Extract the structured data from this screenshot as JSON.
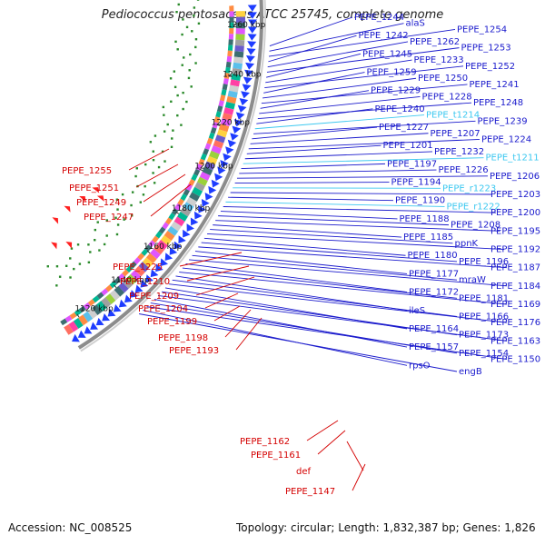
{
  "title": "Pediococcus pentosaceus ATCC 25745, complete genome",
  "footer": {
    "accession": "Accession: NC_008525",
    "summary": "Topology: circular; Length: 1,832,387 bp; Genes: 1,826"
  },
  "colors": {
    "forward_label": "#1a1acc",
    "reverse_label": "#d40000",
    "rna_label": "#3cc8f0",
    "backbone": "#8c8c8c",
    "gc_dots": "#2a8a2a",
    "cds_arrow": "#1e3cff"
  },
  "map": {
    "ticks": [
      "1260 kbp",
      "1240 kbp",
      "1220 kbp",
      "1200 kbp",
      "1180 kbp",
      "1160 kbp",
      "1140 kbp",
      "1120 kbp"
    ],
    "forward_labels": [
      {
        "text": "PEPE_1244"
      },
      {
        "text": "alaS"
      },
      {
        "text": "PEPE_1254"
      },
      {
        "text": "PEPE_1242"
      },
      {
        "text": "PEPE_1262"
      },
      {
        "text": "PEPE_1253"
      },
      {
        "text": "PEPE_1245"
      },
      {
        "text": "PEPE_1233"
      },
      {
        "text": "PEPE_1252"
      },
      {
        "text": "PEPE_1259"
      },
      {
        "text": "PEPE_1250"
      },
      {
        "text": "PEPE_1241"
      },
      {
        "text": "PEPE_1229"
      },
      {
        "text": "PEPE_1228"
      },
      {
        "text": "PEPE_1248"
      },
      {
        "text": "PEPE_1240"
      },
      {
        "text": "PEPE_t1214",
        "type": "rna"
      },
      {
        "text": "PEPE_1239"
      },
      {
        "text": "PEPE_1227"
      },
      {
        "text": "PEPE_1207"
      },
      {
        "text": "PEPE_1224"
      },
      {
        "text": "PEPE_1201"
      },
      {
        "text": "PEPE_1232"
      },
      {
        "text": "PEPE_t1211",
        "type": "rna"
      },
      {
        "text": "PEPE_1197"
      },
      {
        "text": "PEPE_1226"
      },
      {
        "text": "PEPE_1206"
      },
      {
        "text": "PEPE_1194"
      },
      {
        "text": "PEPE_r1223",
        "type": "rna"
      },
      {
        "text": "PEPE_1203"
      },
      {
        "text": "PEPE_1190"
      },
      {
        "text": "PEPE_r1222",
        "type": "rna"
      },
      {
        "text": "PEPE_1200"
      },
      {
        "text": "PEPE_1188"
      },
      {
        "text": "PEPE_1208"
      },
      {
        "text": "PEPE_1195"
      },
      {
        "text": "PEPE_1185"
      },
      {
        "text": "ppnK"
      },
      {
        "text": "PEPE_1192"
      },
      {
        "text": "PEPE_1180"
      },
      {
        "text": "PEPE_1196"
      },
      {
        "text": "PEPE_1187"
      },
      {
        "text": "PEPE_1177"
      },
      {
        "text": "mraW"
      },
      {
        "text": "PEPE_1184"
      },
      {
        "text": "PEPE_1172"
      },
      {
        "text": "PEPE_1181"
      },
      {
        "text": "PEPE_1169"
      },
      {
        "text": "ileS"
      },
      {
        "text": "PEPE_1166"
      },
      {
        "text": "PEPE_1176"
      },
      {
        "text": "PEPE_1164"
      },
      {
        "text": "PEPE_1173"
      },
      {
        "text": "PEPE_1163"
      },
      {
        "text": "PEPE_1157"
      },
      {
        "text": "PEPE_1154"
      },
      {
        "text": "PEPE_1150"
      },
      {
        "text": "rpsO"
      },
      {
        "text": "engB"
      }
    ],
    "reverse_labels": [
      {
        "text": "PEPE_1255"
      },
      {
        "text": "PEPE_1251"
      },
      {
        "text": "PEPE_1249"
      },
      {
        "text": "PEPE_1247"
      },
      {
        "text": "PEPE_1225"
      },
      {
        "text": "PEPE_1210"
      },
      {
        "text": "PEPE_1209"
      },
      {
        "text": "PEPE_1204"
      },
      {
        "text": "PEPE_1199"
      },
      {
        "text": "PEPE_1198"
      },
      {
        "text": "PEPE_1193"
      },
      {
        "text": "PEPE_1162"
      },
      {
        "text": "PEPE_1161"
      },
      {
        "text": "def"
      },
      {
        "text": "PEPE_1147"
      }
    ]
  }
}
